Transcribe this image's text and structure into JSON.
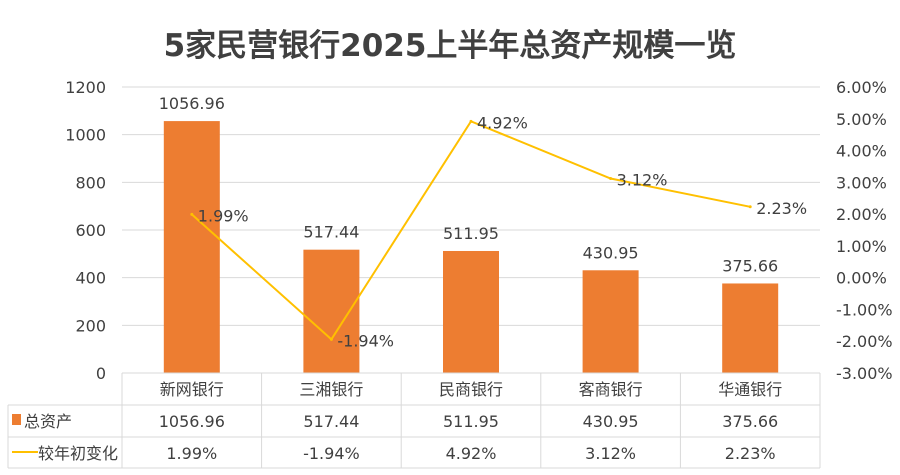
{
  "chart_data": {
    "type": "bar+line",
    "title": "5家民营银行2025上半年总资产规模一览",
    "categories": [
      "新网银行",
      "三湘银行",
      "民商银行",
      "客商银行",
      "华通银行"
    ],
    "series": [
      {
        "name": "总资产",
        "type": "bar",
        "axis": "left",
        "color": "#ED7D31",
        "values": [
          1056.96,
          517.44,
          511.95,
          430.95,
          375.66
        ],
        "labels": [
          "1056.96",
          "517.44",
          "511.95",
          "430.95",
          "375.66"
        ]
      },
      {
        "name": "较年初变化",
        "type": "line",
        "axis": "right",
        "color": "#FFC000",
        "values": [
          1.99,
          -1.94,
          4.92,
          3.12,
          2.23
        ],
        "labels": [
          "1.99%",
          "-1.94%",
          "4.92%",
          "3.12%",
          "2.23%"
        ]
      }
    ],
    "y_left": {
      "ylim": [
        0,
        1200
      ],
      "ticks": [
        "0",
        "200",
        "400",
        "600",
        "800",
        "1000",
        "1200"
      ]
    },
    "y_right": {
      "ylim": [
        -3,
        6
      ],
      "ticks": [
        "-3.00%",
        "-2.00%",
        "-1.00%",
        "0.00%",
        "1.00%",
        "2.00%",
        "3.00%",
        "4.00%",
        "5.00%",
        "6.00%"
      ]
    },
    "grid": true,
    "legend": "data-table",
    "data_table": true
  }
}
